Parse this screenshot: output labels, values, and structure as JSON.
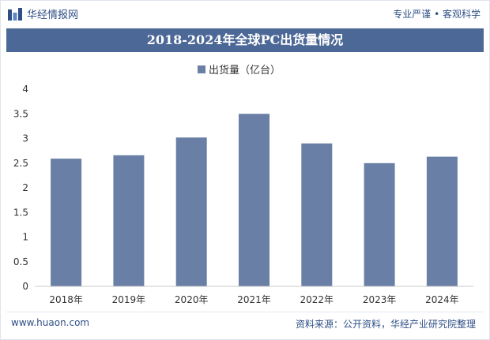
{
  "header": {
    "brand": "华经情报网",
    "tagline": "专业严谨 • 客观科学"
  },
  "footer": {
    "url": "www.huaon.com",
    "source": "资料来源：公开资料，华经产业研究院整理"
  },
  "colors": {
    "bar": "#6a7fa6",
    "title_bg": "#4c6896",
    "brand": "#2f4f86"
  },
  "chart_data": {
    "type": "bar",
    "title": "2018-2024年全球PC出货量情况",
    "legend": "出货量（亿台）",
    "legend_position": "top-center",
    "categories": [
      "2018年",
      "2019年",
      "2020年",
      "2021年",
      "2022年",
      "2023年",
      "2024年"
    ],
    "values": [
      2.59,
      2.66,
      3.02,
      3.5,
      2.9,
      2.5,
      2.63
    ],
    "ylim": [
      0,
      4
    ],
    "yticks": [
      "0",
      "0.5",
      "1",
      "1.5",
      "2",
      "2.5",
      "3",
      "3.5",
      "4"
    ],
    "grid": false
  }
}
